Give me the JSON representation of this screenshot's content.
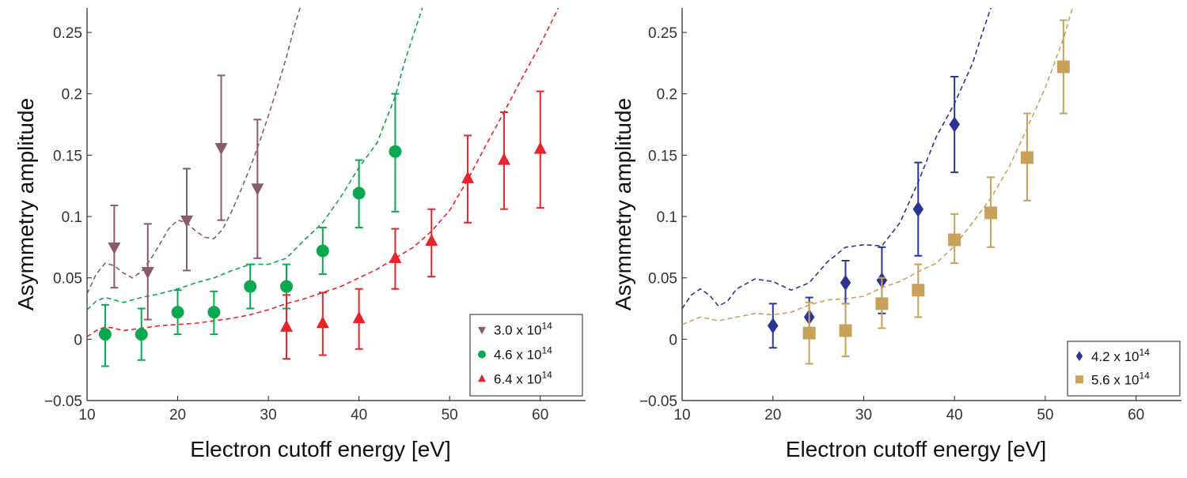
{
  "chart_data": [
    {
      "type": "scatter",
      "xlabel": "Electron cutoff energy  [eV]",
      "ylabel": "Asymmetry amplitude",
      "xlim": [
        10,
        65
      ],
      "ylim": [
        -0.05,
        0.27
      ],
      "xticks": [
        10,
        20,
        30,
        40,
        50,
        60
      ],
      "yticks": [
        -0.05,
        0,
        0.05,
        0.1,
        0.15,
        0.2,
        0.25
      ],
      "ytick_labels": [
        "−0.05",
        "0",
        "0.05",
        "0.1",
        "0.15",
        "0.2",
        "0.25"
      ],
      "legend_position": "bottom-right",
      "series": [
        {
          "name": "3.0 x 10",
          "exponent": "14",
          "color": "#8b5a6e",
          "marker": "triangle-down",
          "x": [
            13,
            16.7,
            21,
            24.8,
            28.8
          ],
          "y": [
            0.075,
            0.055,
            0.097,
            0.156,
            0.123
          ],
          "err_low": [
            0.042,
            0.016,
            0.056,
            0.097,
            0.066
          ],
          "err_high": [
            0.109,
            0.094,
            0.139,
            0.215,
            0.179
          ],
          "fit_x": [
            10,
            11,
            12,
            13,
            14,
            15,
            16,
            17,
            18,
            19,
            20,
            21,
            22,
            23,
            24,
            25,
            26,
            27,
            28,
            29,
            30,
            31,
            32,
            33,
            33.5
          ],
          "fit_y": [
            0.037,
            0.053,
            0.062,
            0.06,
            0.054,
            0.05,
            0.055,
            0.065,
            0.077,
            0.09,
            0.097,
            0.095,
            0.088,
            0.083,
            0.082,
            0.09,
            0.105,
            0.122,
            0.14,
            0.16,
            0.182,
            0.205,
            0.23,
            0.258,
            0.27
          ]
        },
        {
          "name": "4.6 x 10",
          "exponent": "14",
          "color": "#0aa84f",
          "marker": "circle",
          "x": [
            12,
            16,
            20,
            24,
            28,
            32,
            36,
            40,
            44
          ],
          "y": [
            0.004,
            0.004,
            0.022,
            0.022,
            0.043,
            0.043,
            0.072,
            0.119,
            0.153
          ],
          "err_low": [
            -0.022,
            -0.017,
            0.004,
            0.004,
            0.025,
            0.025,
            0.053,
            0.091,
            0.104
          ],
          "err_high": [
            0.028,
            0.025,
            0.04,
            0.039,
            0.061,
            0.061,
            0.091,
            0.146,
            0.2
          ],
          "fit_x": [
            10,
            11,
            12,
            13,
            14,
            16,
            18,
            20,
            22,
            24,
            26,
            28,
            30,
            32,
            34,
            36,
            38,
            40,
            42,
            44,
            45,
            46,
            47
          ],
          "fit_y": [
            0.024,
            0.031,
            0.034,
            0.032,
            0.03,
            0.034,
            0.037,
            0.041,
            0.046,
            0.05,
            0.056,
            0.061,
            0.061,
            0.066,
            0.081,
            0.095,
            0.116,
            0.14,
            0.16,
            0.198,
            0.225,
            0.248,
            0.27
          ]
        },
        {
          "name": "6.4 x 10",
          "exponent": "14",
          "color": "#e8232a",
          "marker": "triangle-up",
          "x": [
            32,
            36,
            40,
            44,
            48,
            52,
            56,
            60
          ],
          "y": [
            0.01,
            0.013,
            0.017,
            0.066,
            0.08,
            0.131,
            0.146,
            0.155
          ],
          "err_low": [
            -0.016,
            -0.013,
            -0.008,
            0.041,
            0.051,
            0.095,
            0.106,
            0.107
          ],
          "err_high": [
            0.036,
            0.038,
            0.041,
            0.09,
            0.106,
            0.166,
            0.185,
            0.202
          ],
          "fit_x": [
            10,
            11,
            12,
            13,
            14,
            16,
            18,
            20,
            22,
            24,
            26,
            28,
            30,
            32,
            34,
            36,
            38,
            40,
            42,
            44,
            46,
            48,
            50,
            52,
            54,
            56,
            58,
            60,
            62
          ],
          "fit_y": [
            0.002,
            0.007,
            0.01,
            0.009,
            0.007,
            0.009,
            0.011,
            0.012,
            0.013,
            0.015,
            0.017,
            0.02,
            0.024,
            0.029,
            0.033,
            0.038,
            0.043,
            0.05,
            0.057,
            0.066,
            0.075,
            0.088,
            0.105,
            0.13,
            0.158,
            0.185,
            0.213,
            0.24,
            0.27
          ]
        }
      ]
    },
    {
      "type": "scatter",
      "xlabel": "Electron cutoff energy  [eV]",
      "ylabel": "Asymmetry amplitude",
      "xlim": [
        10,
        65
      ],
      "ylim": [
        -0.05,
        0.27
      ],
      "xticks": [
        10,
        20,
        30,
        40,
        50,
        60
      ],
      "yticks": [
        -0.05,
        0,
        0.05,
        0.1,
        0.15,
        0.2,
        0.25
      ],
      "ytick_labels": [
        "−0.05",
        "0",
        "0.05",
        "0.1",
        "0.15",
        "0.2",
        "0.25"
      ],
      "legend_position": "bottom-right",
      "series": [
        {
          "name": "4.2 x 10",
          "exponent": "14",
          "color": "#2b3494",
          "marker": "diamond",
          "x": [
            20,
            24,
            28,
            32,
            36,
            40
          ],
          "y": [
            0.011,
            0.018,
            0.046,
            0.048,
            0.106,
            0.175
          ],
          "err_low": [
            -0.007,
            0.004,
            0.029,
            0.021,
            0.068,
            0.136
          ],
          "err_high": [
            0.029,
            0.034,
            0.064,
            0.075,
            0.144,
            0.214
          ],
          "fit_x": [
            10,
            11,
            12,
            13,
            14,
            15,
            16,
            18,
            20,
            22,
            24,
            26,
            28,
            30,
            32,
            34,
            36,
            38,
            40,
            42,
            43,
            44
          ],
          "fit_y": [
            0.025,
            0.036,
            0.041,
            0.036,
            0.027,
            0.031,
            0.041,
            0.049,
            0.047,
            0.04,
            0.046,
            0.063,
            0.075,
            0.077,
            0.076,
            0.095,
            0.128,
            0.165,
            0.192,
            0.225,
            0.248,
            0.27
          ]
        },
        {
          "name": "5.6 x 10",
          "exponent": "14",
          "color": "#c9a25a",
          "marker": "square",
          "x": [
            24,
            28,
            32,
            36,
            40,
            44,
            48,
            52
          ],
          "y": [
            0.005,
            0.007,
            0.029,
            0.04,
            0.081,
            0.103,
            0.148,
            0.222
          ],
          "err_low": [
            -0.02,
            -0.014,
            0.009,
            0.018,
            0.062,
            0.075,
            0.113,
            0.184
          ],
          "err_high": [
            0.03,
            0.029,
            0.05,
            0.061,
            0.102,
            0.132,
            0.184,
            0.26
          ],
          "fit_x": [
            10,
            12,
            14,
            16,
            18,
            20,
            22,
            24,
            26,
            28,
            30,
            32,
            34,
            36,
            38,
            40,
            42,
            44,
            46,
            48,
            50,
            52,
            53
          ],
          "fit_y": [
            0.012,
            0.018,
            0.015,
            0.018,
            0.021,
            0.02,
            0.022,
            0.028,
            0.032,
            0.033,
            0.035,
            0.042,
            0.047,
            0.055,
            0.062,
            0.076,
            0.095,
            0.115,
            0.14,
            0.172,
            0.205,
            0.245,
            0.27
          ]
        }
      ]
    }
  ]
}
